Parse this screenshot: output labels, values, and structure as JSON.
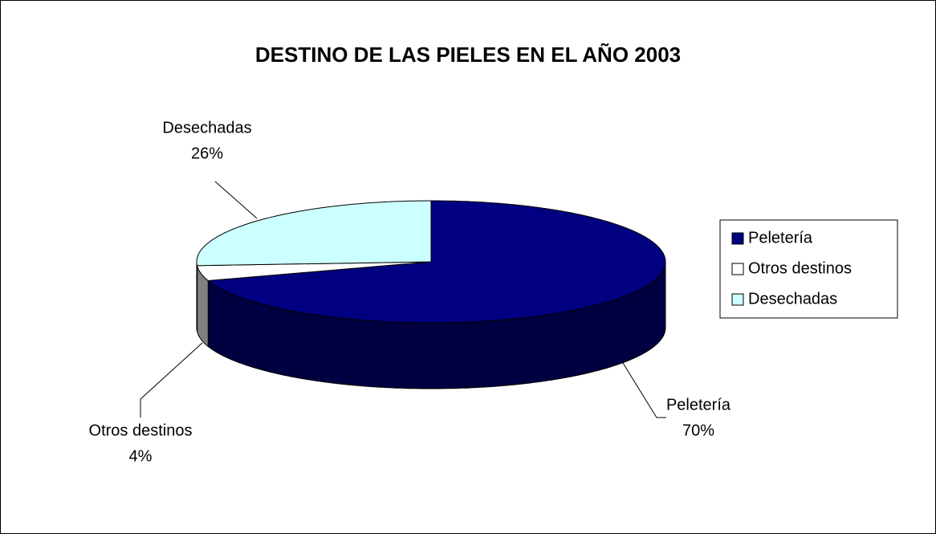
{
  "chart_data": {
    "type": "pie",
    "title": "DESTINO DE LAS PIELES EN EL AÑO 2003",
    "categories": [
      "Peletería",
      "Otros destinos",
      "Desechadas"
    ],
    "values": [
      70,
      4,
      26
    ],
    "value_labels": [
      "70%",
      "4%",
      "26%"
    ],
    "colors": [
      "#000080",
      "#ffffff",
      "#ccffff"
    ],
    "legend": "right"
  }
}
